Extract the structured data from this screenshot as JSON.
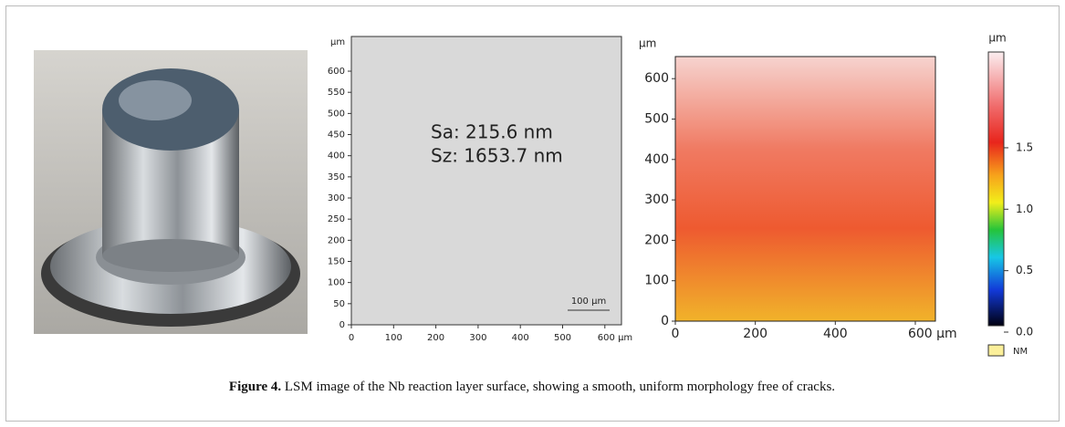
{
  "photo_panel": {},
  "micrograph_panel": {
    "unit": "µm",
    "yticks": [
      0,
      50,
      100,
      150,
      200,
      250,
      300,
      350,
      400,
      450,
      500,
      550,
      600
    ],
    "xticks": [
      0,
      100,
      200,
      300,
      400,
      500,
      {
        "value": 600,
        "label": "600 µm"
      }
    ],
    "annotations": [
      "Sa: 215.6 nm",
      "Sz: 1653.7 nm"
    ],
    "scale_bar": "100 µm"
  },
  "height_map_panel": {
    "unit": "µm",
    "yticks": [
      0,
      100,
      200,
      300,
      400,
      500,
      600
    ],
    "xticks": [
      0,
      200,
      400,
      {
        "value": 600,
        "label": "600 µm"
      }
    ],
    "colorbar": {
      "unit": "µm",
      "ticks": [
        1.5,
        {
          "value": 1,
          "label": "1.0"
        },
        0.5,
        {
          "value": 0,
          "label": "0.0"
        }
      ],
      "no_measure_label": "NM"
    }
  },
  "caption": {
    "label": "Figure 4.",
    "text": " LSM image of the Nb reaction layer surface, showing a smooth, uniform morphology free of cracks."
  }
}
